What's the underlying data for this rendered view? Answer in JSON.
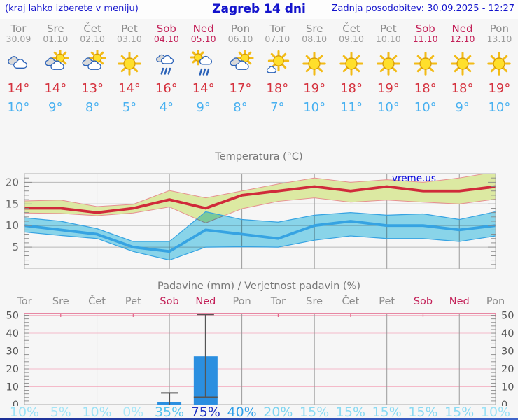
{
  "header": {
    "note": "(kraj lahko izberete v meniju)",
    "title": "Zagreb 14 dni",
    "updated": "Zadnja posodobitev: 30.09.2025 - 12:27"
  },
  "watermark": "vreme.us",
  "days": [
    {
      "name": "Tor",
      "date": "30.09",
      "weekend": false,
      "icon": "cloudy",
      "tmax": "14°",
      "tmin": "10°",
      "prob": "10%",
      "prob_color": "#9ce2f6"
    },
    {
      "name": "Sre",
      "date": "01.10",
      "weekend": false,
      "icon": "partly-cloudy",
      "tmax": "14°",
      "tmin": "9°",
      "prob": "5%",
      "prob_color": "#a6e5f7"
    },
    {
      "name": "Čet",
      "date": "02.10",
      "weekend": false,
      "icon": "partly-cloudy",
      "tmax": "13°",
      "tmin": "8°",
      "prob": "10%",
      "prob_color": "#9ce2f6"
    },
    {
      "name": "Pet",
      "date": "03.10",
      "weekend": false,
      "icon": "sunny",
      "tmax": "14°",
      "tmin": "5°",
      "prob": "0%",
      "prob_color": "#aae7f8"
    },
    {
      "name": "Sob",
      "date": "04.10",
      "weekend": true,
      "icon": "rain",
      "tmax": "16°",
      "tmin": "4°",
      "prob": "35%",
      "prob_color": "#55c3ee"
    },
    {
      "name": "Ned",
      "date": "05.10",
      "weekend": true,
      "icon": "sun-shower",
      "tmax": "14°",
      "tmin": "9°",
      "prob": "75%",
      "prob_color": "#2134c4"
    },
    {
      "name": "Pon",
      "date": "06.10",
      "weekend": false,
      "icon": "partly-cloudy",
      "tmax": "17°",
      "tmin": "8°",
      "prob": "40%",
      "prob_color": "#2f9fe9"
    },
    {
      "name": "Tor",
      "date": "07.10",
      "weekend": false,
      "icon": "mostly-sunny",
      "tmax": "18°",
      "tmin": "7°",
      "prob": "20%",
      "prob_color": "#7ed5f1"
    },
    {
      "name": "Sre",
      "date": "08.10",
      "weekend": false,
      "icon": "sunny",
      "tmax": "19°",
      "tmin": "10°",
      "prob": "15%",
      "prob_color": "#8adaf3"
    },
    {
      "name": "Čet",
      "date": "09.10",
      "weekend": false,
      "icon": "sunny",
      "tmax": "18°",
      "tmin": "11°",
      "prob": "15%",
      "prob_color": "#8adaf3"
    },
    {
      "name": "Pet",
      "date": "10.10",
      "weekend": false,
      "icon": "sunny",
      "tmax": "19°",
      "tmin": "10°",
      "prob": "15%",
      "prob_color": "#8adaf3"
    },
    {
      "name": "Sob",
      "date": "11.10",
      "weekend": true,
      "icon": "sunny",
      "tmax": "18°",
      "tmin": "10°",
      "prob": "15%",
      "prob_color": "#8adaf3"
    },
    {
      "name": "Ned",
      "date": "12.10",
      "weekend": true,
      "icon": "sunny",
      "tmax": "18°",
      "tmin": "9°",
      "prob": "15%",
      "prob_color": "#8adaf3"
    },
    {
      "name": "Pon",
      "date": "13.10",
      "weekend": false,
      "icon": "sunny",
      "tmax": "19°",
      "tmin": "10°",
      "prob": "10%",
      "prob_color": "#9ce2f6"
    }
  ],
  "chart_data": [
    {
      "type": "line",
      "title": "Temperatura (°C)",
      "x_labels": [
        "Tor 30.09",
        "Sre 01.10",
        "Čet 02.10",
        "Pet 03.10",
        "Sob 04.10",
        "Ned 05.10",
        "Pon 06.10",
        "Tor 07.10",
        "Sre 08.10",
        "Čet 09.10",
        "Pet 10.10",
        "Sob 11.10",
        "Ned 12.10",
        "Pon 13.10"
      ],
      "ylim": [
        0,
        22
      ],
      "yticks": [
        5,
        10,
        15,
        20
      ],
      "grid": true,
      "watermark": "vreme.us",
      "series": [
        {
          "name": "max temperature",
          "color": "#d02a3a",
          "values": [
            14,
            14,
            13,
            14,
            16,
            14,
            17,
            18,
            19,
            18,
            19,
            18,
            18,
            19
          ]
        },
        {
          "name": "max range upper",
          "color": "#e69090",
          "values": [
            15.7,
            15.9,
            14.4,
            14.9,
            18.1,
            16.4,
            18,
            19.6,
            21,
            20,
            20.6,
            20,
            21,
            22.4
          ]
        },
        {
          "name": "max range lower",
          "color": "#e69090",
          "values": [
            12.9,
            12.8,
            12.3,
            12.9,
            14.3,
            10.6,
            13.9,
            15.6,
            16.4,
            15.4,
            15.9,
            15.4,
            15,
            16.1
          ]
        },
        {
          "name": "min temperature",
          "color": "#36a3e2",
          "values": [
            10,
            9,
            8,
            5,
            4,
            9,
            8,
            7,
            10,
            11,
            10,
            10,
            9,
            10
          ]
        },
        {
          "name": "min range upper",
          "color": "#3aa8e0",
          "values": [
            11.8,
            11,
            9.3,
            6.3,
            6.3,
            13.2,
            11.4,
            10.8,
            12.4,
            13,
            12.4,
            12.7,
            11.4,
            13.2
          ]
        },
        {
          "name": "min range lower",
          "color": "#3aa8e0",
          "values": [
            8.5,
            7.7,
            7,
            4,
            2,
            5,
            5.1,
            5,
            6.6,
            7.6,
            7,
            7,
            6.3,
            7.6
          ]
        }
      ]
    },
    {
      "type": "bar",
      "title": "Padavine (mm) / Verjetnost padavin (%)",
      "x_labels": [
        "Tor",
        "Sre",
        "Čet",
        "Pet",
        "Sob",
        "Ned",
        "Pon",
        "Tor",
        "Sre",
        "Čet",
        "Pet",
        "Sob",
        "Ned",
        "Pon"
      ],
      "ylim": [
        0,
        51
      ],
      "yticks": [
        0,
        10,
        20,
        30,
        40,
        50
      ],
      "bars": [
        {
          "label": "Sob 04.10",
          "index": 4,
          "value": 1.5,
          "range_min": 0,
          "range_max": 6.5
        },
        {
          "label": "Ned 05.10",
          "index": 5,
          "value": 27,
          "range_min": 4,
          "range_max": 50.5
        }
      ],
      "probabilities_pct": [
        10,
        5,
        10,
        0,
        35,
        75,
        40,
        20,
        15,
        15,
        15,
        15,
        15,
        10
      ]
    }
  ],
  "colors": {
    "accent_blue": "#1414cc",
    "weekend": "#c32058",
    "tmax_text": "#d5323e",
    "tmin_text": "#47b0f0",
    "red_line": "#d02a3a",
    "red_band": "#dce9a2",
    "red_band_edge": "#e69090",
    "blue_line": "#36a3e2",
    "blue_band": "#8edcf2",
    "bar_blue": "#2b8fe0",
    "whisker": "#555555",
    "grid_h": "#b8b8b8",
    "grid_v": "#9a9a9a",
    "precip_grid_pink": "#f4bac9",
    "precip_top_border": "#e26287",
    "axis_text": "#666666",
    "watermark_blue": "#0000dd"
  }
}
